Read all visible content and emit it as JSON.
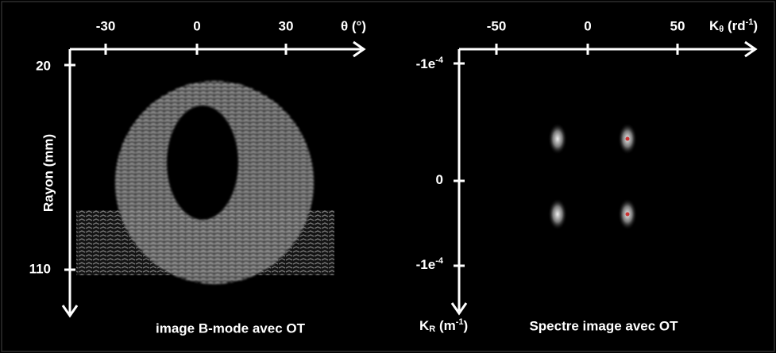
{
  "left_panel": {
    "x_axis": {
      "label": "θ (°)",
      "ticks": [
        "-30",
        "0",
        "30"
      ]
    },
    "y_axis": {
      "label": "Rayon (mm)",
      "ticks": [
        "20",
        "110"
      ]
    },
    "caption": "image B-mode avec OT"
  },
  "right_panel": {
    "x_axis": {
      "label": {
        "base": "K",
        "sub": "θ",
        "unit": " (rd",
        "sup": "-1",
        "close": ")"
      },
      "ticks": [
        "-50",
        "0",
        "50"
      ]
    },
    "y_axis": {
      "label": {
        "base": "K",
        "sub": "R",
        "unit": " (m",
        "sup": "-1",
        "close": ")"
      },
      "ticks": [
        {
          "base": "-1e",
          "sup": "-4"
        },
        {
          "base": "0"
        },
        {
          "base": "-1e",
          "sup": "-4"
        }
      ]
    },
    "caption": "Spectre image avec OT"
  }
}
